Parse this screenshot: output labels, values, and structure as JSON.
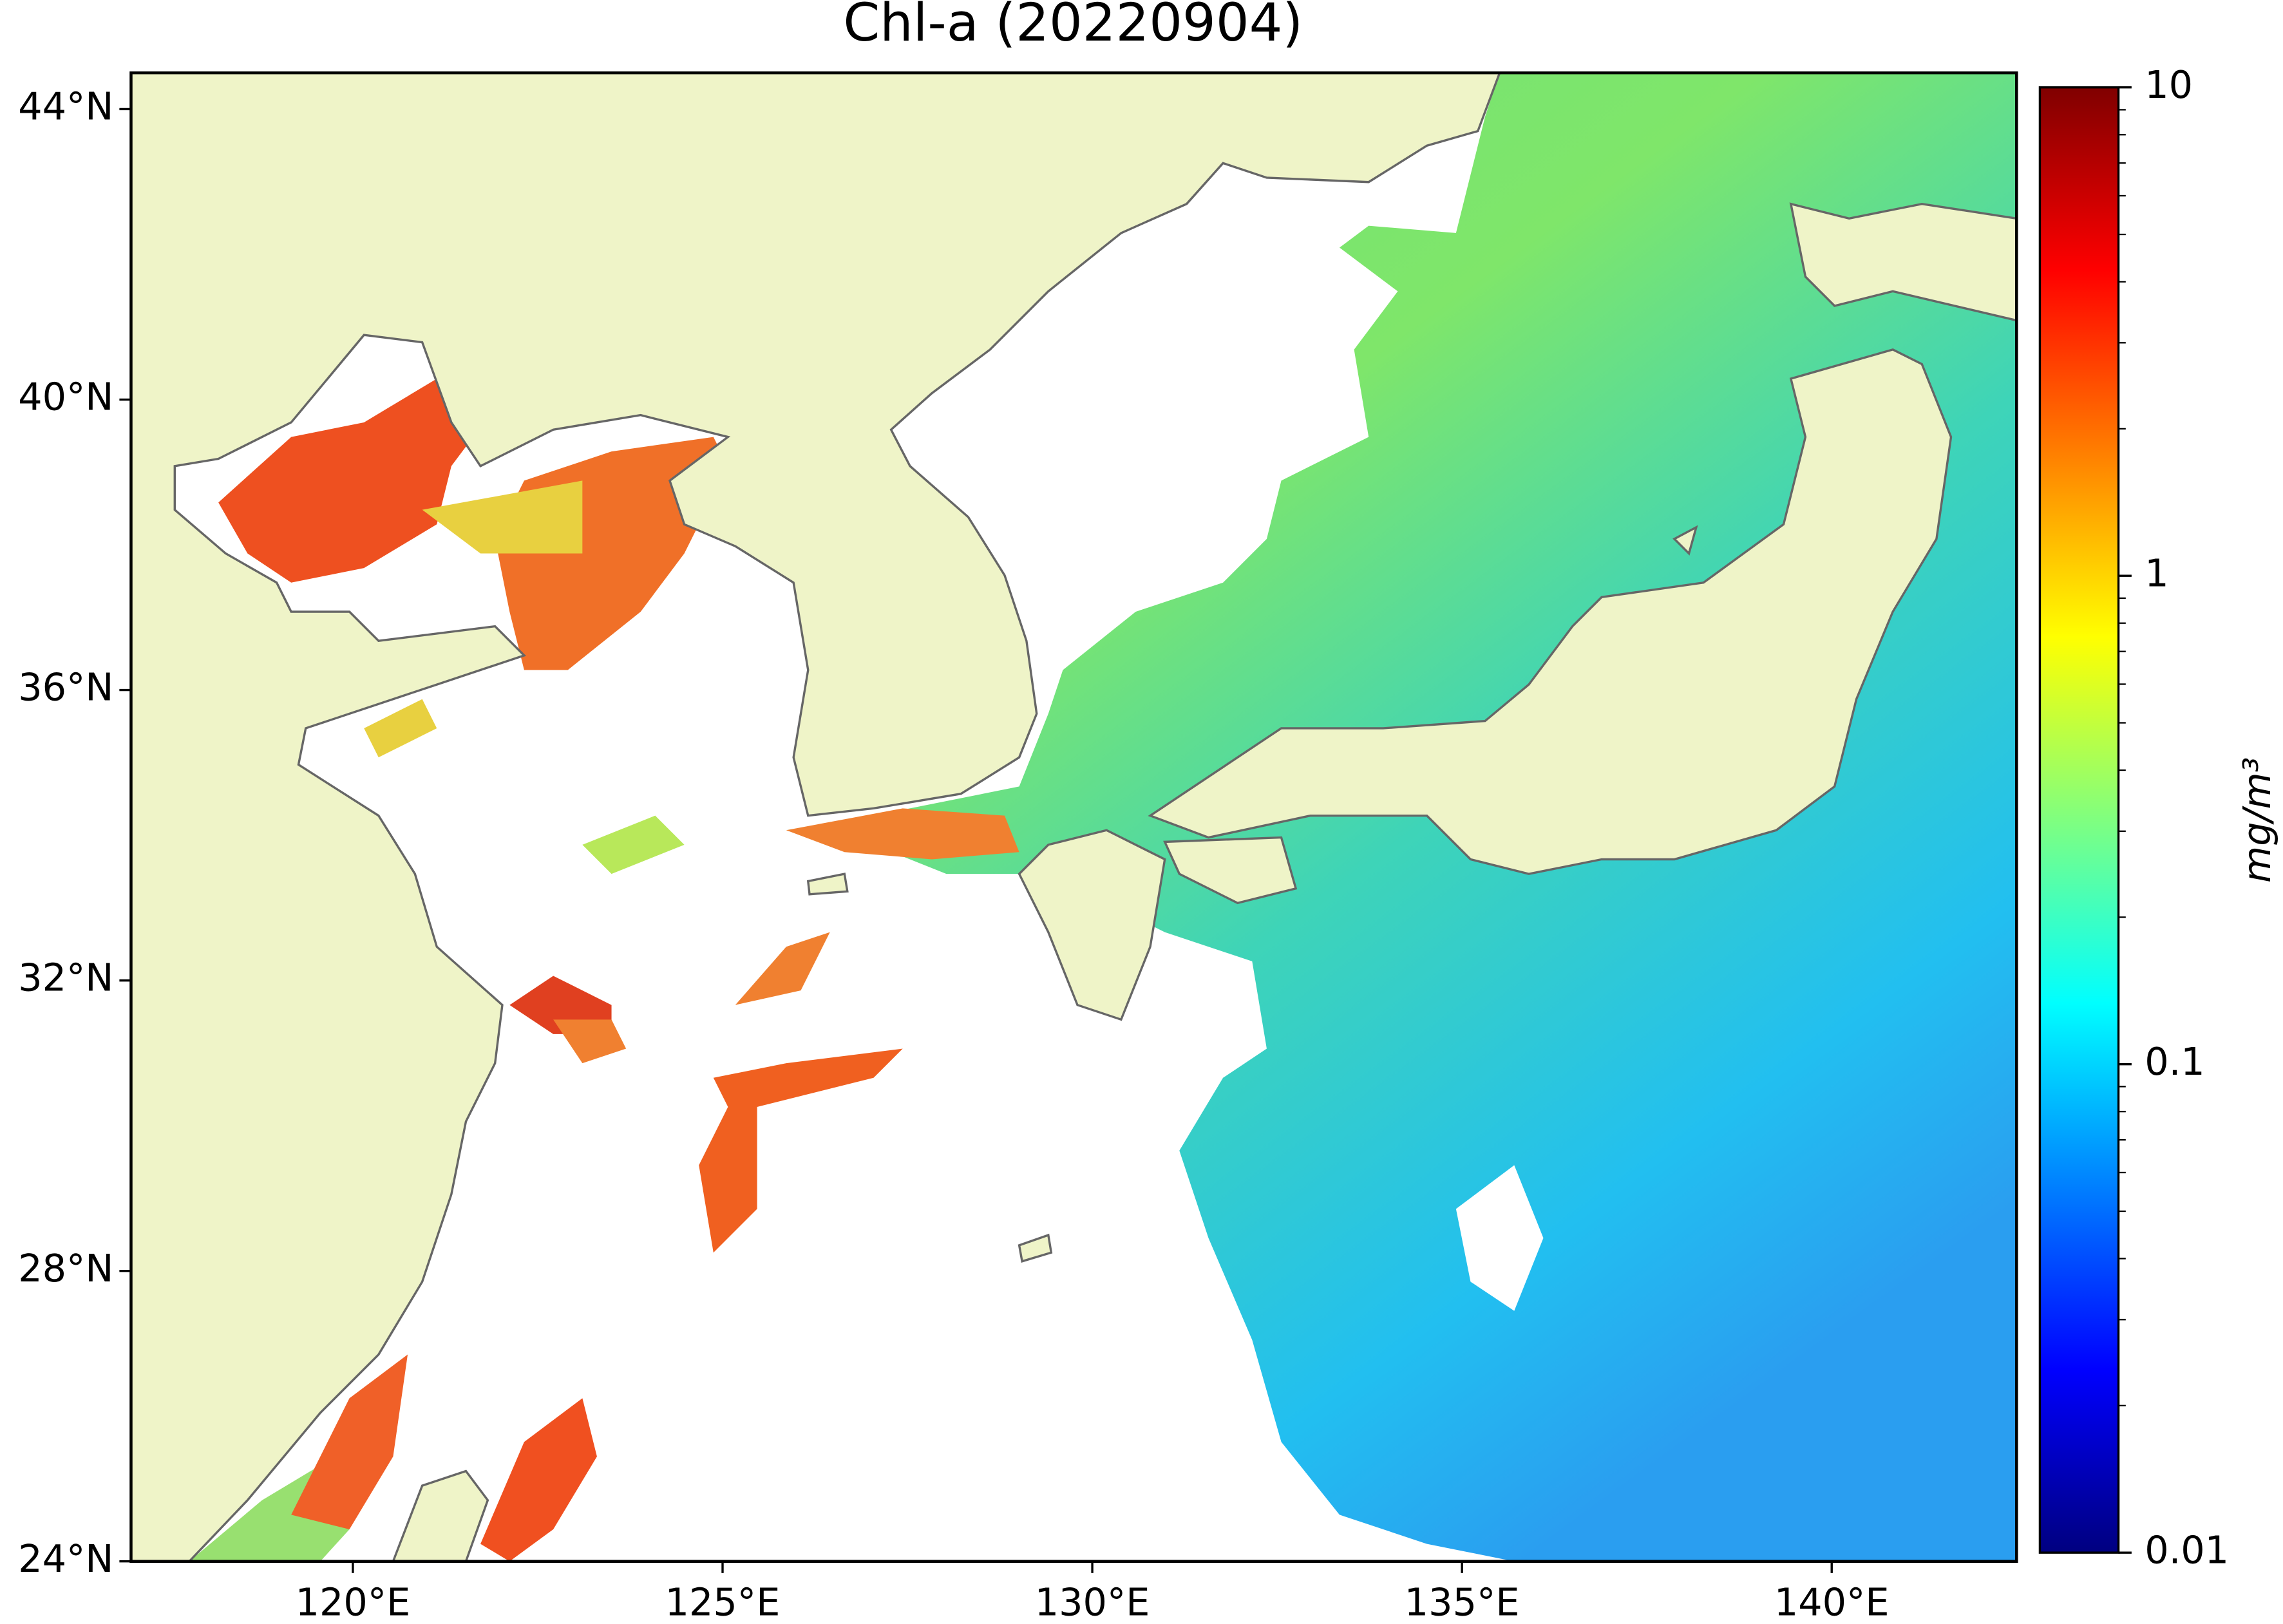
{
  "chart_data": {
    "type": "map",
    "title": "Chl-a (20220904)",
    "xlim": [
      117,
      142.5
    ],
    "ylim": [
      24,
      44.5
    ],
    "xticks": [
      {
        "value": 120,
        "label": "120°E"
      },
      {
        "value": 125,
        "label": "125°E"
      },
      {
        "value": 130,
        "label": "130°E"
      },
      {
        "value": 135,
        "label": "135°E"
      },
      {
        "value": 140,
        "label": "140°E"
      }
    ],
    "yticks": [
      {
        "value": 24,
        "label": "24°N"
      },
      {
        "value": 28,
        "label": "28°N"
      },
      {
        "value": 32,
        "label": "32°N"
      },
      {
        "value": 36,
        "label": "36°N"
      },
      {
        "value": 40,
        "label": "40°N"
      },
      {
        "value": 44,
        "label": "44°N"
      }
    ],
    "colorbar": {
      "label": "mg/m³",
      "scale": "log",
      "lim": [
        0.01,
        10
      ],
      "ticks": [
        0.01,
        0.1,
        1,
        10
      ],
      "minor_ticks": [
        0.02,
        0.03,
        0.04,
        0.05,
        0.06,
        0.07,
        0.08,
        0.09,
        0.2,
        0.3,
        0.4,
        0.5,
        0.6,
        0.7,
        0.8,
        0.9,
        2,
        3,
        4,
        5,
        6,
        7,
        8,
        9
      ]
    }
  }
}
